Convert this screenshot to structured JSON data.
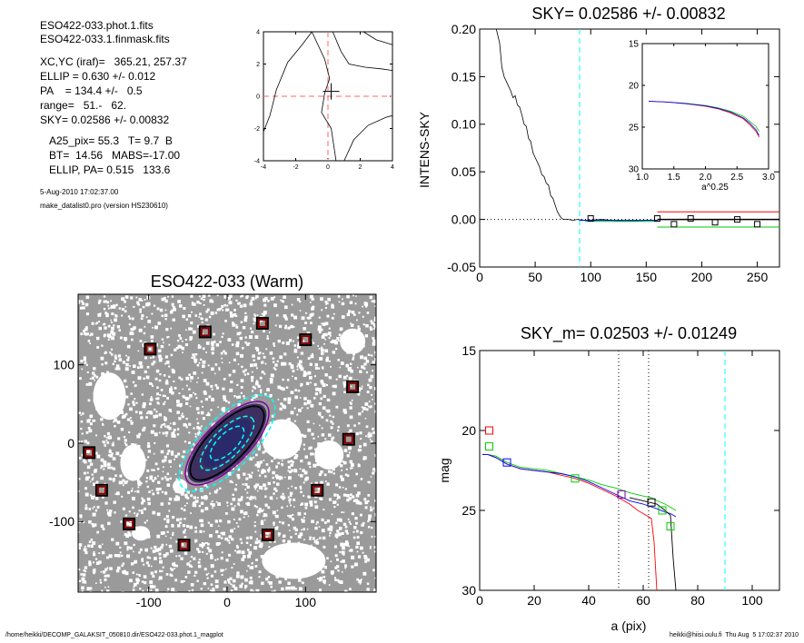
{
  "info": {
    "file1": "ESO422-033.phot.1.fits",
    "file2": "ESO422-033.1.finmask.fits",
    "xcyc": "XC,YC (iraf)=   365.21, 257.37",
    "ellip": "ELLIP = 0.630 +/- 0.012",
    "pa": "PA    = 134.4 +/-   0.5",
    "range": "range=   51.-   62.",
    "sky": "SKY= 0.02586 +/- 0.00832",
    "a25": "A25_pix= 55.3   T= 9.7  B",
    "bt": "BT=  14.56   MABS=-17.00",
    "ellippa": "ELLIP, PA= 0.515   133.6",
    "date": "5-Aug-2010 17:02:37.00",
    "program": "make_datalist0.pro (version HS230610)"
  },
  "footer": {
    "left": "/home/heikki/DECOMP_GALAKSIT_050810.dir/ESO422-033.phot.1_magplot",
    "right": "heikki@hiisi.oulu.fi  Thu Aug  5 17:02:37 2010"
  },
  "colors": {
    "black": "#000000",
    "red": "#ff0000",
    "green": "#00cc00",
    "blue": "#0000ff",
    "cyan": "#00ffff",
    "brown": "#8b0000",
    "purple": "#8000a0",
    "pinkdash": "#ff6666"
  },
  "chart_data": [
    {
      "id": "center",
      "type": "line",
      "title": "",
      "xlim": [
        -4,
        4
      ],
      "ylim": [
        -4,
        4
      ],
      "xticks": [
        -4,
        -2,
        0,
        2,
        4
      ],
      "yticks": [
        -4,
        -2,
        0,
        2,
        4
      ],
      "crosshair": [
        0.2,
        0.3
      ],
      "contours": [
        [
          [
            -4,
            -2.2
          ],
          [
            -3.6,
            -1.2
          ],
          [
            -3.2,
            0.4
          ],
          [
            -2.5,
            2.1
          ],
          [
            -1.6,
            3.2
          ],
          [
            -1.0,
            4
          ]
        ],
        [
          [
            -1.0,
            4
          ],
          [
            -0.2,
            2.3
          ],
          [
            0.1,
            1.1
          ],
          [
            -0.2,
            0.2
          ],
          [
            -0.4,
            -1.0
          ],
          [
            0.2,
            -2.0
          ],
          [
            0.5,
            -4
          ]
        ],
        [
          [
            0.3,
            4
          ],
          [
            0.8,
            2.8
          ],
          [
            1.3,
            2.0
          ],
          [
            2.3,
            1.8
          ],
          [
            3.3,
            1.7
          ],
          [
            4,
            1.6
          ]
        ],
        [
          [
            1.0,
            -4
          ],
          [
            1.6,
            -2.7
          ],
          [
            2.5,
            -1.8
          ],
          [
            3.6,
            -1.3
          ],
          [
            4,
            -1.2
          ]
        ],
        [
          [
            2.2,
            4
          ],
          [
            3.0,
            3.5
          ],
          [
            4,
            3.2
          ]
        ]
      ]
    },
    {
      "id": "sky",
      "type": "line",
      "title": "SKY= 0.02586 +/- 0.00832",
      "ylabel": "INTENS-SKY",
      "xlabel": "",
      "xlim": [
        0,
        270
      ],
      "ylim": [
        -0.05,
        0.2
      ],
      "xticks": [
        0,
        50,
        100,
        150,
        200,
        250
      ],
      "yticks": [
        -0.05,
        0.0,
        0.05,
        0.1,
        0.15,
        0.2
      ],
      "vline": 90,
      "profile": {
        "x": [
          15,
          18,
          20,
          22,
          24,
          26,
          28,
          30,
          32,
          34,
          36,
          38,
          40,
          42,
          44,
          46,
          48,
          50,
          52,
          54,
          56,
          58,
          60,
          62,
          64,
          66,
          68,
          70,
          72,
          74,
          76,
          78,
          80,
          84,
          88,
          95,
          110,
          130,
          150,
          160
        ],
        "y": [
          0.2,
          0.185,
          0.16,
          0.15,
          0.145,
          0.14,
          0.135,
          0.128,
          0.13,
          0.12,
          0.118,
          0.11,
          0.1,
          0.098,
          0.085,
          0.082,
          0.07,
          0.065,
          0.06,
          0.055,
          0.047,
          0.045,
          0.038,
          0.036,
          0.025,
          0.022,
          0.015,
          0.008,
          0.004,
          0.001,
          0.0,
          0.0,
          0.0,
          -0.001,
          0.0,
          -0.001,
          0.0,
          -0.002,
          -0.001,
          -0.001
        ]
      },
      "sky_lines": [
        {
          "color": "red",
          "x": [
            160,
            270
          ],
          "y": [
            0.008,
            0.008
          ]
        },
        {
          "color": "green",
          "x": [
            160,
            270
          ],
          "y": [
            -0.008,
            -0.008
          ]
        },
        {
          "color": "black",
          "x": [
            160,
            270
          ],
          "y": [
            0.0,
            0.0
          ]
        },
        {
          "color": "blue",
          "x": [
            90,
            160
          ],
          "y": [
            -0.001,
            -0.001
          ]
        },
        {
          "color": "green",
          "x": [
            95,
            160
          ],
          "y": [
            -0.002,
            -0.002
          ]
        }
      ],
      "squares": [
        [
          100,
          0.001
        ],
        [
          160,
          0.001
        ],
        [
          175,
          -0.005
        ],
        [
          190,
          0.001
        ],
        [
          212,
          -0.003
        ],
        [
          232,
          0.0
        ],
        [
          250,
          -0.005
        ]
      ],
      "inset": {
        "xlim": [
          1.0,
          3.0
        ],
        "ylim": [
          30,
          15
        ],
        "xticks": [
          1.0,
          1.5,
          2.0,
          2.5,
          3.0
        ],
        "yticks": [
          15,
          20,
          25,
          30
        ],
        "xlabel": "a^0.25",
        "series": [
          {
            "color": "green",
            "x": [
              1.1,
              1.4,
              1.7,
              2.0,
              2.2,
              2.4,
              2.6,
              2.7,
              2.8,
              2.85
            ],
            "y": [
              21.9,
              22.0,
              22.15,
              22.4,
              22.7,
              23.1,
              23.7,
              24.3,
              24.9,
              25.5
            ]
          },
          {
            "color": "red",
            "x": [
              1.1,
              1.4,
              1.7,
              2.0,
              2.2,
              2.4,
              2.6,
              2.7,
              2.8,
              2.85
            ],
            "y": [
              21.9,
              22.0,
              22.2,
              22.5,
              22.8,
              23.3,
              24.0,
              24.7,
              25.5,
              26.2
            ]
          },
          {
            "color": "blue",
            "x": [
              1.1,
              1.4,
              1.7,
              2.0,
              2.2,
              2.4,
              2.6,
              2.7,
              2.8,
              2.85
            ],
            "y": [
              21.9,
              22.0,
              22.2,
              22.45,
              22.75,
              23.2,
              23.9,
              24.5,
              25.3,
              26.0
            ]
          }
        ]
      }
    },
    {
      "id": "image",
      "type": "scatter",
      "title": "ESO422-033 (Warm)",
      "xlim": [
        -190,
        190
      ],
      "ylim": [
        -190,
        190
      ],
      "xticks": [
        -100,
        0,
        100
      ],
      "yticks": [
        -100,
        0,
        100
      ],
      "sky_boxes": [
        [
          -28,
          142
        ],
        [
          45,
          153
        ],
        [
          -98,
          120
        ],
        [
          100,
          132
        ],
        [
          160,
          72
        ],
        [
          -176,
          -12
        ],
        [
          -160,
          -60
        ],
        [
          155,
          5
        ],
        [
          -125,
          -103
        ],
        [
          115,
          -60
        ],
        [
          -55,
          -130
        ],
        [
          52,
          -117
        ]
      ],
      "ellipses": [
        {
          "color": "cyan",
          "a": 80,
          "b": 33,
          "pa": -45
        },
        {
          "color": "purple",
          "a": 70,
          "b": 28,
          "pa": -45
        },
        {
          "color": "black",
          "a": 62,
          "b": 24,
          "pa": -45
        },
        {
          "color": "cyan",
          "a": 45,
          "b": 18,
          "pa": -45
        },
        {
          "color": "cyan",
          "a": 28,
          "b": 12,
          "pa": -45
        }
      ]
    },
    {
      "id": "mag",
      "type": "line",
      "title": "SKY_m=  0.02503 +/- 0.01249",
      "ylabel": "mag",
      "xlabel": "a (pix)",
      "xlim": [
        0,
        110
      ],
      "ylim": [
        30,
        15
      ],
      "xticks": [
        0,
        20,
        40,
        60,
        80,
        100
      ],
      "yticks": [
        15,
        20,
        25,
        30
      ],
      "vlines_dotted": [
        51,
        62
      ],
      "vline_dashed": 90,
      "series": [
        {
          "color": "green",
          "x": [
            1,
            3,
            6,
            10,
            15,
            20,
            25,
            30,
            35,
            40,
            45,
            50,
            55,
            60,
            63,
            65,
            68,
            70,
            72
          ],
          "y": [
            21.5,
            21.5,
            21.6,
            22.0,
            22.3,
            22.4,
            22.5,
            22.7,
            22.9,
            23.1,
            23.4,
            23.6,
            23.9,
            24.1,
            24.2,
            24.4,
            24.6,
            24.8,
            25.0
          ]
        },
        {
          "color": "red",
          "x": [
            1,
            3,
            6,
            10,
            15,
            20,
            25,
            30,
            35,
            40,
            45,
            50,
            55,
            58,
            60,
            63,
            64,
            65
          ],
          "y": [
            21.5,
            21.5,
            21.7,
            22.1,
            22.4,
            22.5,
            22.6,
            22.8,
            23.0,
            23.3,
            23.7,
            24.1,
            24.6,
            25.0,
            25.2,
            25.5,
            27,
            30
          ]
        },
        {
          "color": "blue",
          "x": [
            1,
            3,
            6,
            10,
            15,
            20,
            25,
            30,
            35,
            40,
            45,
            50,
            55,
            60,
            65,
            68,
            70,
            72
          ],
          "y": [
            21.5,
            21.5,
            21.7,
            22.1,
            22.4,
            22.5,
            22.6,
            22.7,
            22.9,
            23.2,
            23.6,
            24.0,
            24.4,
            24.6,
            24.9,
            25.1,
            25.2,
            25.4
          ]
        },
        {
          "color": "black",
          "x": [
            55,
            60,
            65,
            68,
            70,
            71,
            72
          ],
          "y": [
            24.2,
            24.4,
            24.6,
            25.0,
            25.3,
            28,
            30
          ]
        }
      ],
      "squares": [
        {
          "color": "red",
          "x": 3.5,
          "y": 20.0
        },
        {
          "color": "green",
          "x": 3.5,
          "y": 21.0
        },
        {
          "color": "blue",
          "x": 10,
          "y": 22.0
        },
        {
          "color": "green",
          "x": 35,
          "y": 23.0
        },
        {
          "color": "purple",
          "x": 52,
          "y": 24.0
        },
        {
          "color": "black",
          "x": 63,
          "y": 24.5
        },
        {
          "color": "green",
          "x": 67,
          "y": 25.0
        },
        {
          "color": "green",
          "x": 70,
          "y": 26.0
        }
      ]
    }
  ]
}
